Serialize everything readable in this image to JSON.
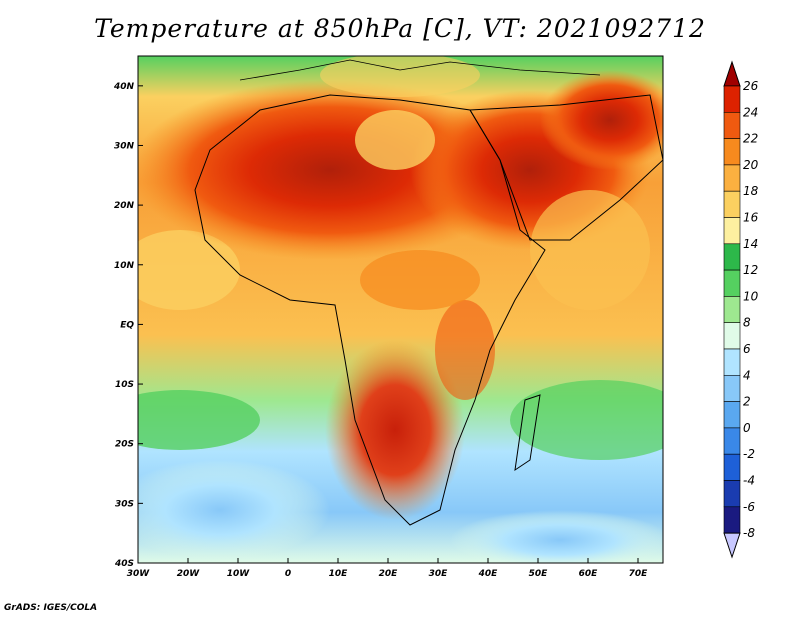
{
  "title": "Temperature at 850hPa [C], VT: 2021092712",
  "footer": "GrADS: IGES/COLA",
  "colors": {
    "ocean_cool": "#5f9ee0",
    "ocean_mid": "#a8e4a0",
    "land_hot": "#e0401a",
    "land_warm": "#f4a030"
  },
  "map": {
    "lon_range": [
      -30,
      75
    ],
    "lat_range": [
      -40,
      45
    ],
    "lon_ticks": [
      "30W",
      "20W",
      "10W",
      "0",
      "10E",
      "20E",
      "30E",
      "40E",
      "50E",
      "60E",
      "70E"
    ],
    "lat_ticks": [
      "40N",
      "30N",
      "20N",
      "10N",
      "EQ",
      "10S",
      "20S",
      "30S",
      "40S"
    ]
  },
  "colorbar": {
    "levels": [
      "26",
      "24",
      "22",
      "20",
      "18",
      "16",
      "14",
      "12",
      "10",
      "8",
      "6",
      "4",
      "2",
      "0",
      "-2",
      "-4",
      "-6",
      "-8"
    ],
    "colors": [
      "#a00000",
      "#dd2200",
      "#f05a10",
      "#f78a1e",
      "#fbb040",
      "#fbd060",
      "#fdf0a0",
      "#2db84a",
      "#55d060",
      "#9ee890",
      "#e0fbe8",
      "#b0e4ff",
      "#88c8f8",
      "#5aa8f0",
      "#3a88e8",
      "#1e60d8",
      "#1a3cb0",
      "#1a1a80",
      "#c8c8ff"
    ]
  }
}
